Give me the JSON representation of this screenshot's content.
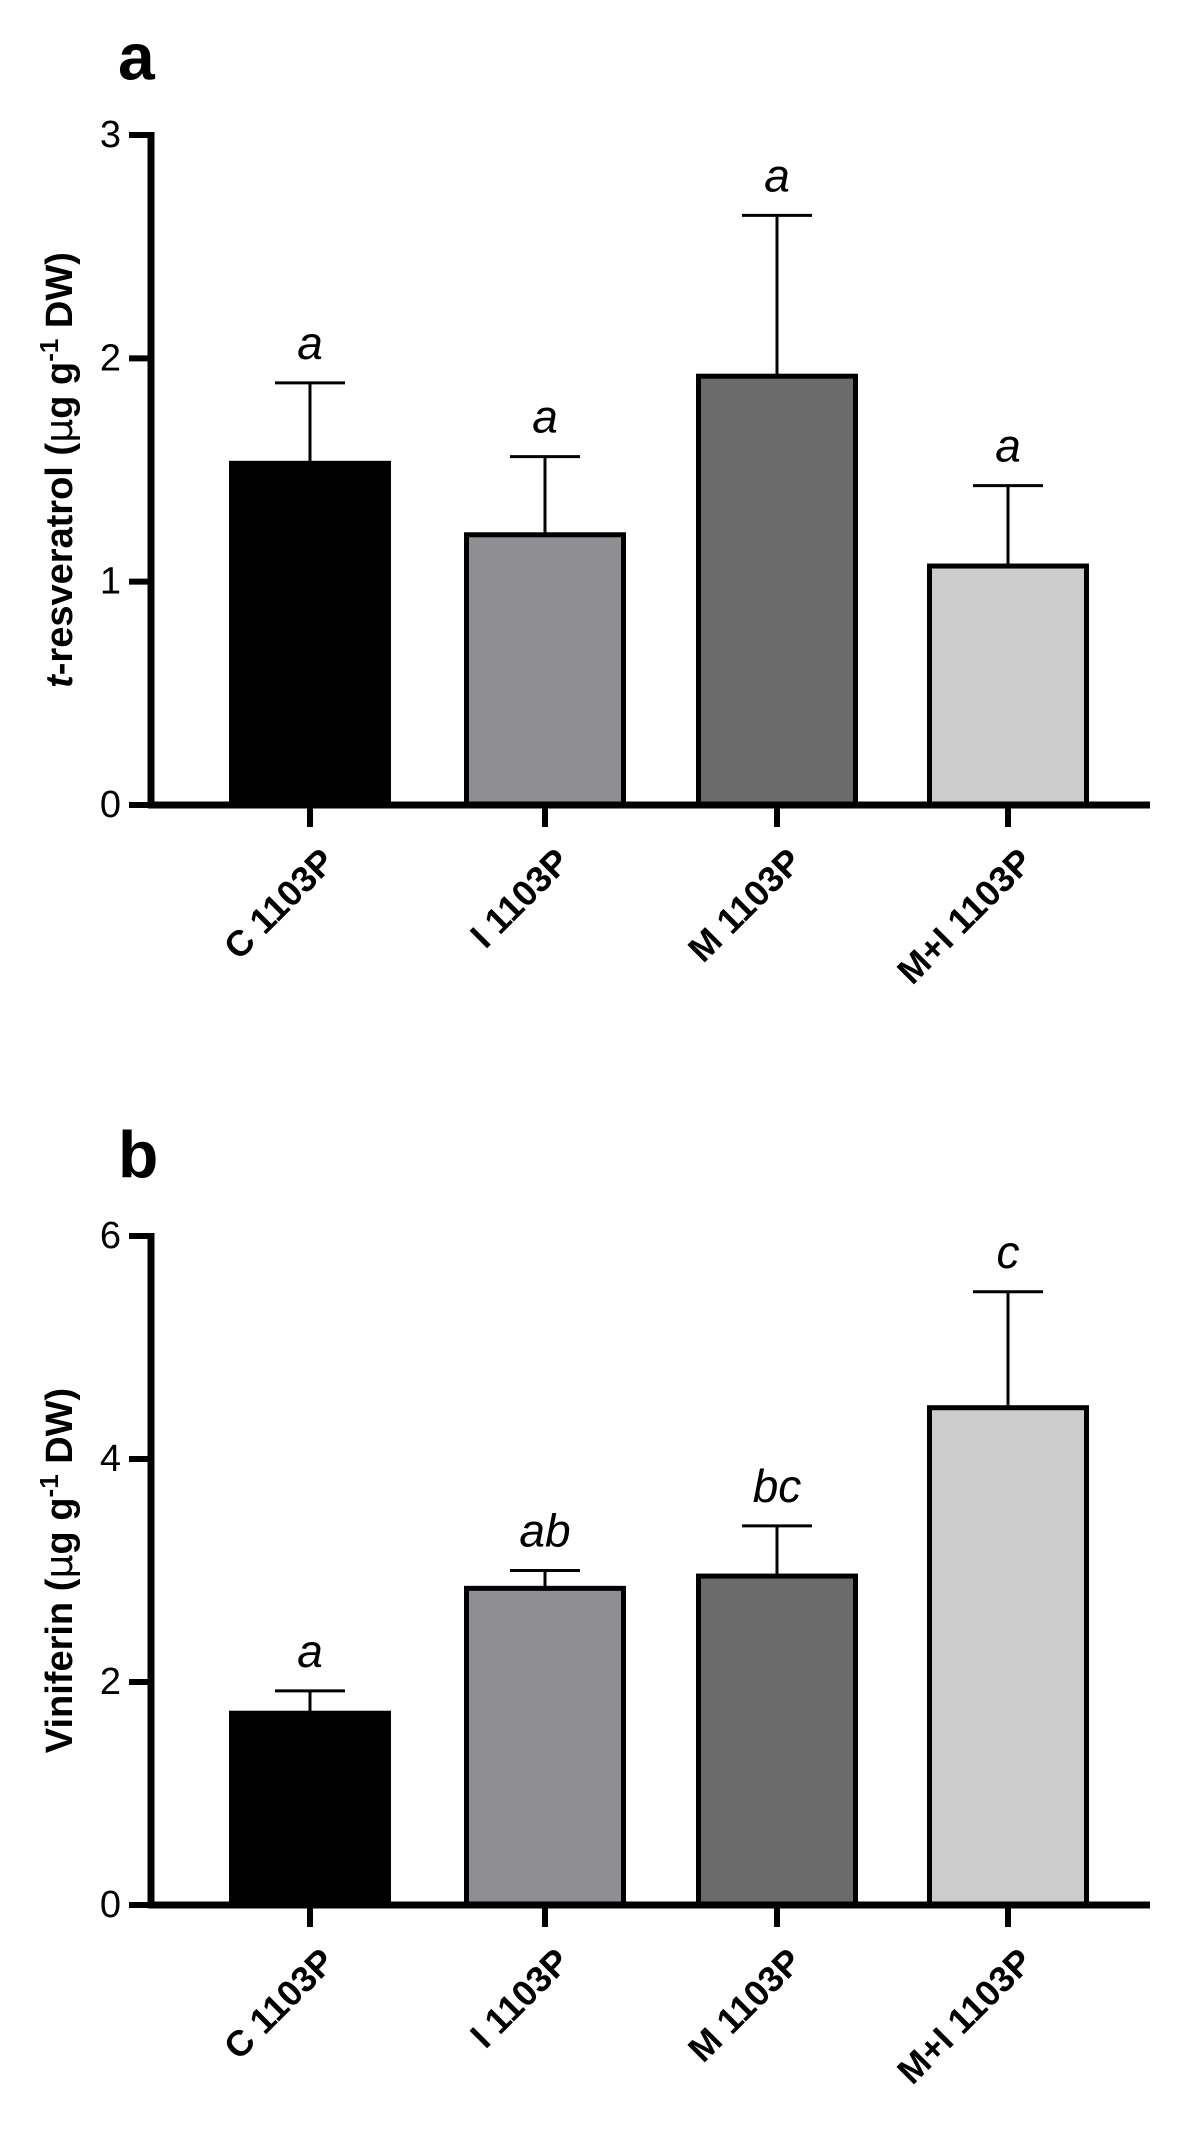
{
  "chart_data": [
    {
      "panel": "a",
      "type": "bar",
      "categories": [
        "C 1103P",
        "I 1103P",
        "M 1103P",
        "M+I 1103P"
      ],
      "values": [
        1.53,
        1.21,
        1.92,
        1.07
      ],
      "errors": [
        0.36,
        0.35,
        0.72,
        0.36
      ],
      "significance": [
        "a",
        "a",
        "a",
        "a"
      ],
      "colors": [
        "#000000",
        "#8e8e93",
        "#6b6b6b",
        "#cccccc"
      ],
      "ylabel_parts": {
        "italic": "t",
        "main": "-resveratrol (",
        "mu": "μ",
        "unit": "g g",
        "sup": "-1",
        "end": " DW)"
      },
      "ylim": [
        0,
        3
      ],
      "yticks": [
        "0",
        "1",
        "2",
        "3"
      ]
    },
    {
      "panel": "b",
      "type": "bar",
      "categories": [
        "C 1103P",
        "I 1103P",
        "M 1103P",
        "M+I 1103P"
      ],
      "values": [
        1.72,
        2.84,
        2.95,
        4.46
      ],
      "errors": [
        0.2,
        0.16,
        0.45,
        1.04
      ],
      "significance": [
        "a",
        "ab",
        "bc",
        "c"
      ],
      "colors": [
        "#000000",
        "#8e8e93",
        "#6b6b6b",
        "#cccccc"
      ],
      "ylabel_parts": {
        "italic": "",
        "main": "Viniferin (",
        "mu": "μ",
        "unit": "g g",
        "sup": "-1",
        "end": " DW)"
      },
      "ylim": [
        0,
        6
      ],
      "yticks": [
        "0",
        "2",
        "4",
        "6"
      ]
    }
  ]
}
